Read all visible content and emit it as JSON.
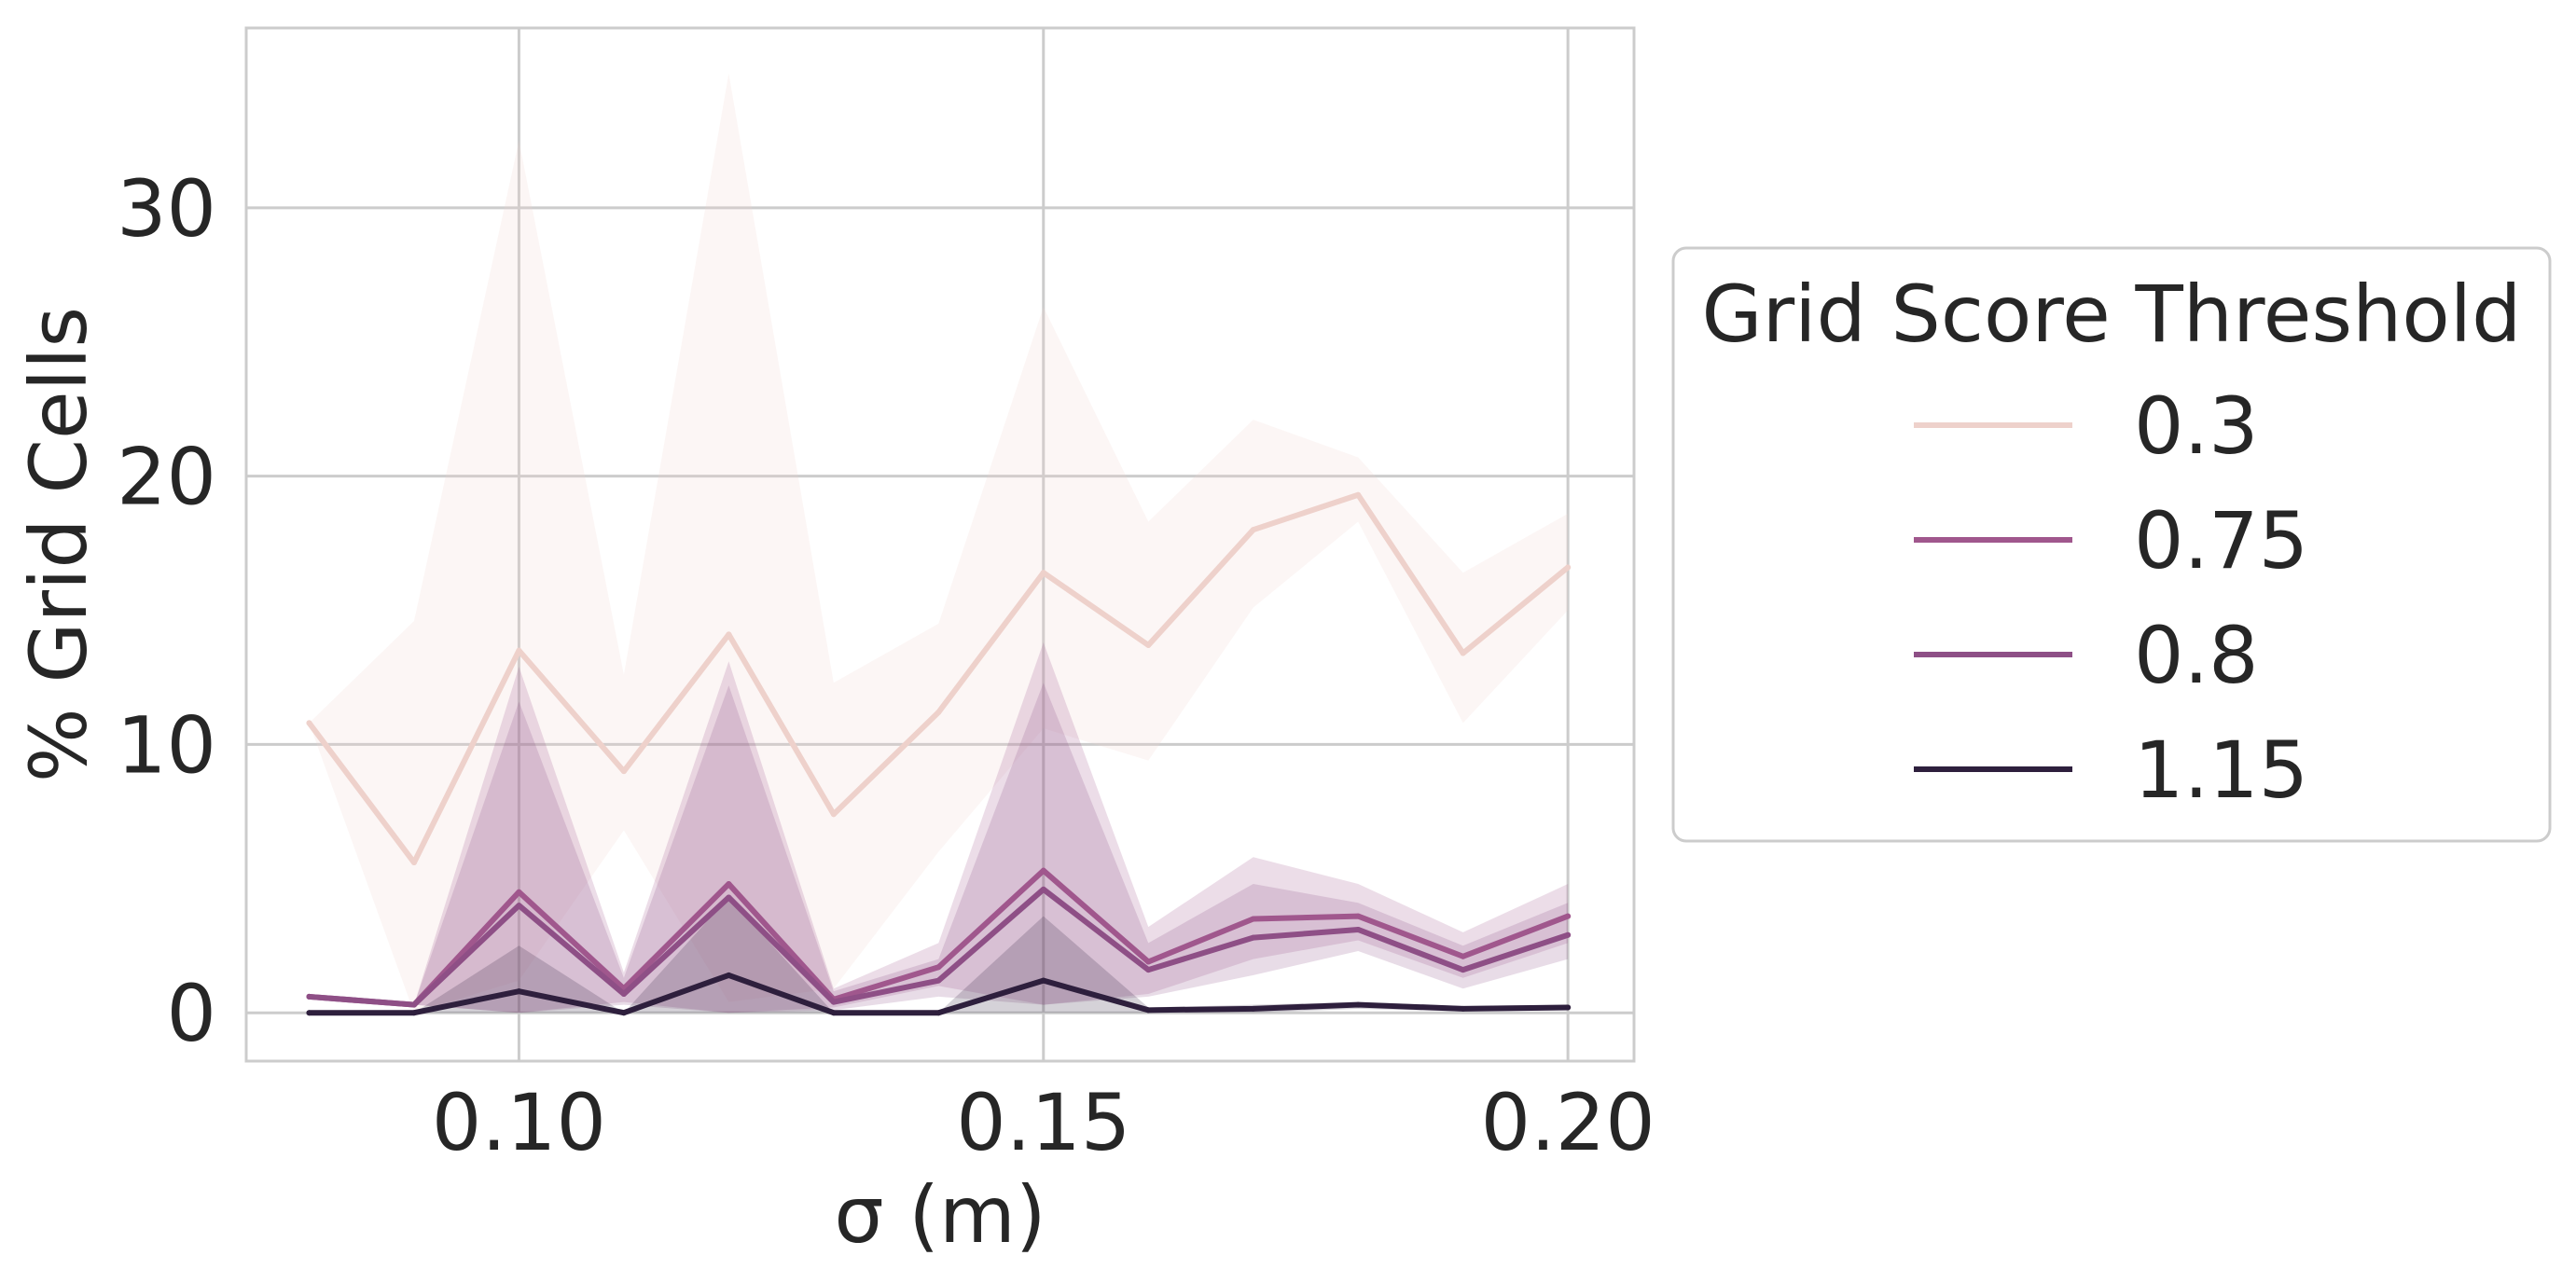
{
  "chart_data": {
    "type": "line",
    "xlabel": "σ (m)",
    "ylabel": "% Grid Cells",
    "xlim": [
      0.074,
      0.2063
    ],
    "ylim": [
      -1.8,
      36.7
    ],
    "xticks": [
      0.1,
      0.15,
      0.2
    ],
    "xtick_labels": [
      "0.10",
      "0.15",
      "0.20"
    ],
    "yticks": [
      0,
      10,
      20,
      30
    ],
    "ytick_labels": [
      "0",
      "10",
      "20",
      "30"
    ],
    "grid": true,
    "legend": {
      "title": "Grid Score Threshold",
      "placement": "outside-right"
    },
    "x": [
      0.08,
      0.09,
      0.1,
      0.11,
      0.12,
      0.13,
      0.14,
      0.15,
      0.16,
      0.17,
      0.18,
      0.19,
      0.2
    ],
    "series": [
      {
        "name": "0.3",
        "color": "#eed1cb",
        "values": [
          10.8,
          5.6,
          13.5,
          9.0,
          14.1,
          7.4,
          11.2,
          16.4,
          13.7,
          18.0,
          19.3,
          13.4,
          16.6
        ],
        "band_upper": [
          10.8,
          14.6,
          32.5,
          12.6,
          35.0,
          12.3,
          14.5,
          26.3,
          18.3,
          22.1,
          20.7,
          16.4,
          18.6
        ],
        "band_lower": [
          10.8,
          0.0,
          1.2,
          6.8,
          0.4,
          0.9,
          6.0,
          10.6,
          9.4,
          15.1,
          18.3,
          10.8,
          15.0
        ]
      },
      {
        "name": "0.75",
        "color": "#a0578d",
        "values": [
          0.6,
          0.3,
          4.5,
          0.9,
          4.8,
          0.5,
          1.7,
          5.3,
          1.9,
          3.5,
          3.6,
          2.1,
          3.6
        ],
        "band_upper": [
          0.6,
          0.3,
          12.9,
          1.5,
          13.1,
          0.9,
          2.6,
          13.8,
          3.2,
          5.8,
          4.8,
          3.0,
          4.8
        ],
        "band_lower": [
          0.6,
          0.3,
          0.0,
          0.4,
          0.0,
          0.2,
          1.0,
          0.3,
          0.7,
          2.0,
          2.7,
          1.3,
          2.6
        ]
      },
      {
        "name": "0.8",
        "color": "#8e4f86",
        "values": [
          0.6,
          0.3,
          4.0,
          0.7,
          4.3,
          0.4,
          1.2,
          4.6,
          1.6,
          2.8,
          3.1,
          1.6,
          2.9
        ],
        "band_upper": [
          0.6,
          0.3,
          11.6,
          1.3,
          12.2,
          0.8,
          2.0,
          12.3,
          2.6,
          4.8,
          4.1,
          2.5,
          4.1
        ],
        "band_lower": [
          0.6,
          0.3,
          0.0,
          0.3,
          0.0,
          0.1,
          0.6,
          0.3,
          0.6,
          1.4,
          2.3,
          0.9,
          2.0
        ]
      },
      {
        "name": "1.15",
        "color": "#2e1f3d",
        "values": [
          0.0,
          0.0,
          0.8,
          0.0,
          1.4,
          0.0,
          0.0,
          1.2,
          0.1,
          0.15,
          0.3,
          0.15,
          0.2
        ],
        "band_upper": [
          0.0,
          0.0,
          2.5,
          0.0,
          4.3,
          0.0,
          0.0,
          3.6,
          0.2,
          0.3,
          0.4,
          0.25,
          0.3
        ],
        "band_lower": [
          0.0,
          0.0,
          0.0,
          0.0,
          0.0,
          0.0,
          0.0,
          0.0,
          0.0,
          0.0,
          0.15,
          0.05,
          0.1
        ]
      }
    ]
  }
}
